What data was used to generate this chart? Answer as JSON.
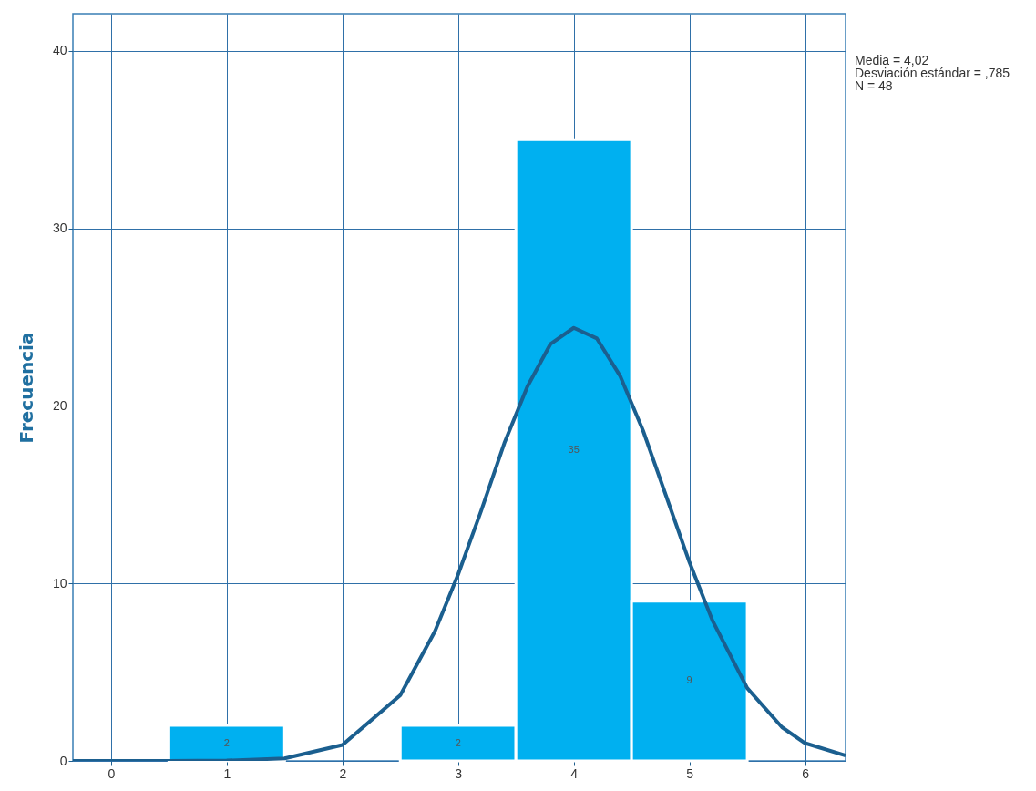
{
  "chart_data": {
    "type": "histogram",
    "ylabel": "Frecuencia",
    "bins": [
      0.5,
      1.5,
      2.5,
      3.5,
      4.5,
      5.5
    ],
    "values": [
      2,
      0,
      2,
      35,
      9
    ],
    "value_labels": [
      "2",
      null,
      "2",
      "35",
      "9"
    ],
    "color": "#00b0f0",
    "series": [
      {
        "type": "line",
        "color": "#1b5f8f",
        "x": [
          -0.33,
          0.5,
          1,
          1.5,
          2,
          2.5,
          2.8,
          3,
          3.2,
          3.4,
          3.6,
          3.8,
          4,
          4.2,
          4.4,
          4.6,
          4.8,
          5,
          5.2,
          5.5,
          5.8,
          6,
          6.35
        ],
        "values": [
          0,
          0,
          0.02,
          0.14,
          0.9,
          3.7,
          7.3,
          10.5,
          14.1,
          17.9,
          21.1,
          23.5,
          24.4,
          23.8,
          21.7,
          18.6,
          14.9,
          11.2,
          7.9,
          4.1,
          1.9,
          1.0,
          0.3
        ]
      }
    ],
    "xlim": [
      -0.33,
      6.35
    ],
    "ylim": [
      0,
      42.1
    ],
    "xticks": [
      0,
      1,
      2,
      3,
      4,
      5,
      6
    ],
    "yticks": [
      0,
      10,
      20,
      30,
      40
    ],
    "grid": true,
    "annotations": [
      "Media = 4,02",
      "Desviación estándar = ,785",
      "N = 48"
    ]
  }
}
